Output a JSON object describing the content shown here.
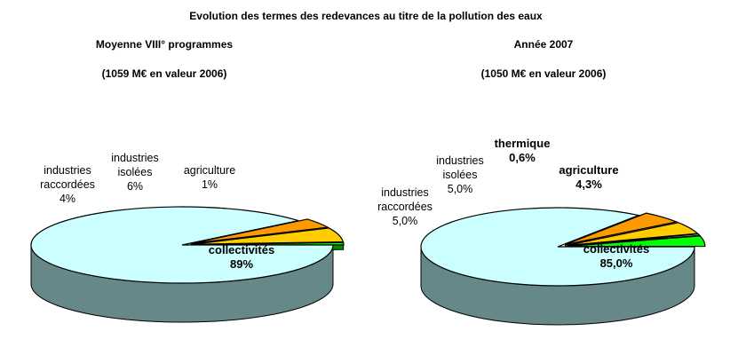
{
  "title": "Evolution des termes des  redevances au titre de la pollution des eaux",
  "chart_data": [
    {
      "type": "pie",
      "title": "Moyenne VIII° programmes",
      "subtitle": "(1059 M€  en valeur 2006)",
      "slices": [
        {
          "name_lines": [
            "collectivités"
          ],
          "value": 89,
          "value_label": "89%",
          "color": "#ccffff"
        },
        {
          "name_lines": [
            "industries",
            "raccordées"
          ],
          "value": 4,
          "value_label": "4%",
          "color": "#ff9900"
        },
        {
          "name_lines": [
            "industries",
            "isolées"
          ],
          "value": 6,
          "value_label": "6%",
          "color": "#ffcc00"
        },
        {
          "name_lines": [
            "agriculture"
          ],
          "value": 1,
          "value_label": "1%",
          "color": "#00ff00"
        }
      ]
    },
    {
      "type": "pie",
      "title": "Année 2007",
      "subtitle": "(1050 M€  en valeur 2006)",
      "slices": [
        {
          "name_lines": [
            "collectivités"
          ],
          "value": 85.0,
          "value_label": "85,0%",
          "color": "#ccffff"
        },
        {
          "name_lines": [
            "industries",
            "raccordées"
          ],
          "value": 5.0,
          "value_label": "5,0%",
          "color": "#ff9900"
        },
        {
          "name_lines": [
            "industries",
            "isolées"
          ],
          "value": 5.0,
          "value_label": "5,0%",
          "color": "#ffcc00"
        },
        {
          "name_lines": [
            "thermique"
          ],
          "value": 0.6,
          "value_label": "0,6%",
          "color": "#ccffff"
        },
        {
          "name_lines": [
            "agriculture"
          ],
          "value": 4.3,
          "value_label": "4,3%",
          "color": "#00ff00"
        }
      ]
    }
  ]
}
